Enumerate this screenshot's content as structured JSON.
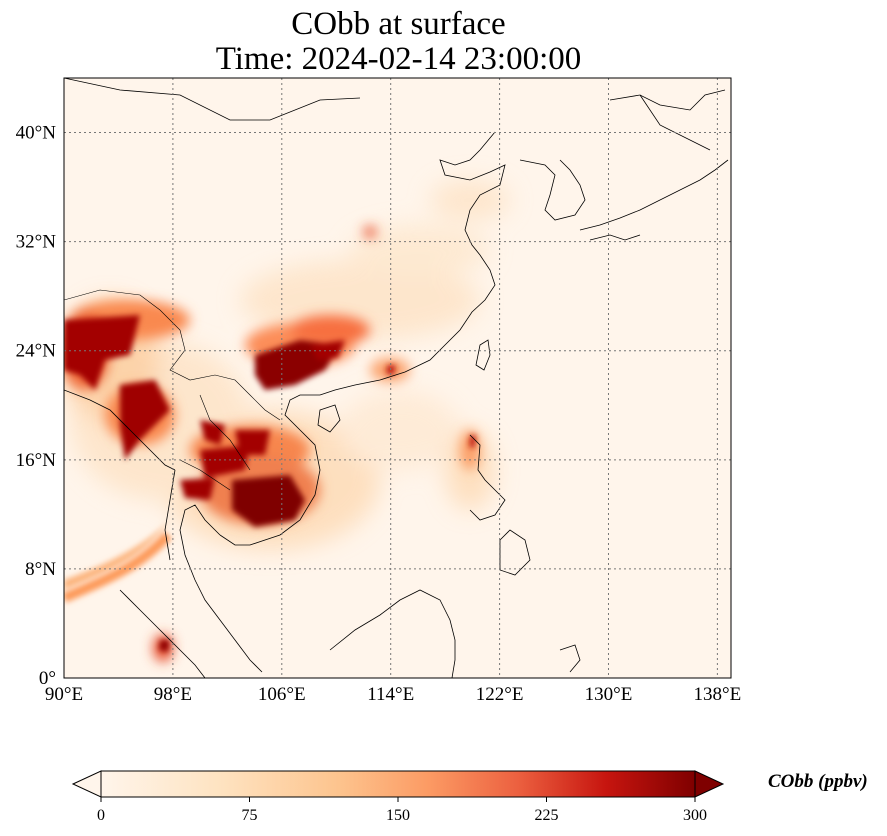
{
  "title": {
    "line1": "CObb at surface",
    "line2": "Time: 2024-02-14 23:00:00"
  },
  "map": {
    "projection": "PlateCarree",
    "lon_range": [
      90,
      139
    ],
    "lat_range": [
      0,
      44
    ],
    "lon_ticks": [
      "90°E",
      "98°E",
      "106°E",
      "114°E",
      "122°E",
      "130°E",
      "138°E"
    ],
    "lat_ticks": [
      "0°",
      "8°N",
      "16°N",
      "24°N",
      "32°N",
      "40°N"
    ],
    "gridlines": "dotted",
    "background_color": "#fff5eb"
  },
  "colorbar": {
    "label": "CObb (ppbv)",
    "ticks": [
      "0",
      "75",
      "150",
      "225",
      "300"
    ],
    "range": [
      0,
      300
    ],
    "extend": "both",
    "colormap": "OrRd",
    "colors": [
      "#fff5eb",
      "#fdd5a4",
      "#fcaa6e",
      "#e9502e",
      "#b30000",
      "#7f0000"
    ]
  }
}
